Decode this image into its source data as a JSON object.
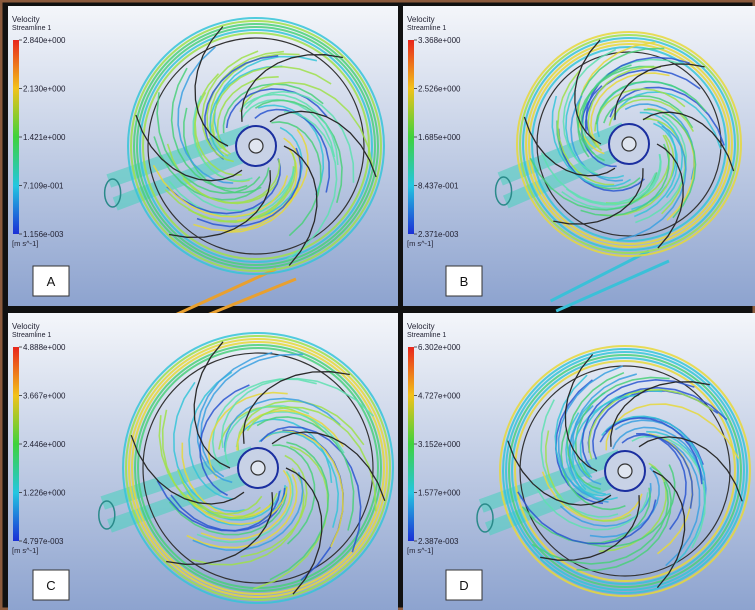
{
  "panels": [
    {
      "label": "A",
      "legend": {
        "title": "Velocity",
        "subtitle": "Streamline 1",
        "ticks": [
          "2.840e+000",
          "2.130e+000",
          "1.421e+000",
          "7.109e-001",
          "1.156e-003"
        ],
        "unit": "[m s^-1]"
      }
    },
    {
      "label": "B",
      "legend": {
        "title": "Velocity",
        "subtitle": "Streamline 1",
        "ticks": [
          "3.368e+000",
          "2.526e+000",
          "1.685e+000",
          "8.437e-001",
          "2.371e-003"
        ],
        "unit": "[m s^-1]"
      }
    },
    {
      "label": "C",
      "legend": {
        "title": "Velocity",
        "subtitle": "Streamline 1",
        "ticks": [
          "4.888e+000",
          "3.667e+000",
          "2.446e+000",
          "1.226e+000",
          "4.797e-003"
        ],
        "unit": "[m s^-1]"
      }
    },
    {
      "label": "D",
      "legend": {
        "title": "Velocity",
        "subtitle": "Streamline 1",
        "ticks": [
          "6.302e+000",
          "4.727e+000",
          "3.152e+000",
          "1.577e+000",
          "2.387e-003"
        ],
        "unit": "[m s^-1]"
      }
    }
  ]
}
